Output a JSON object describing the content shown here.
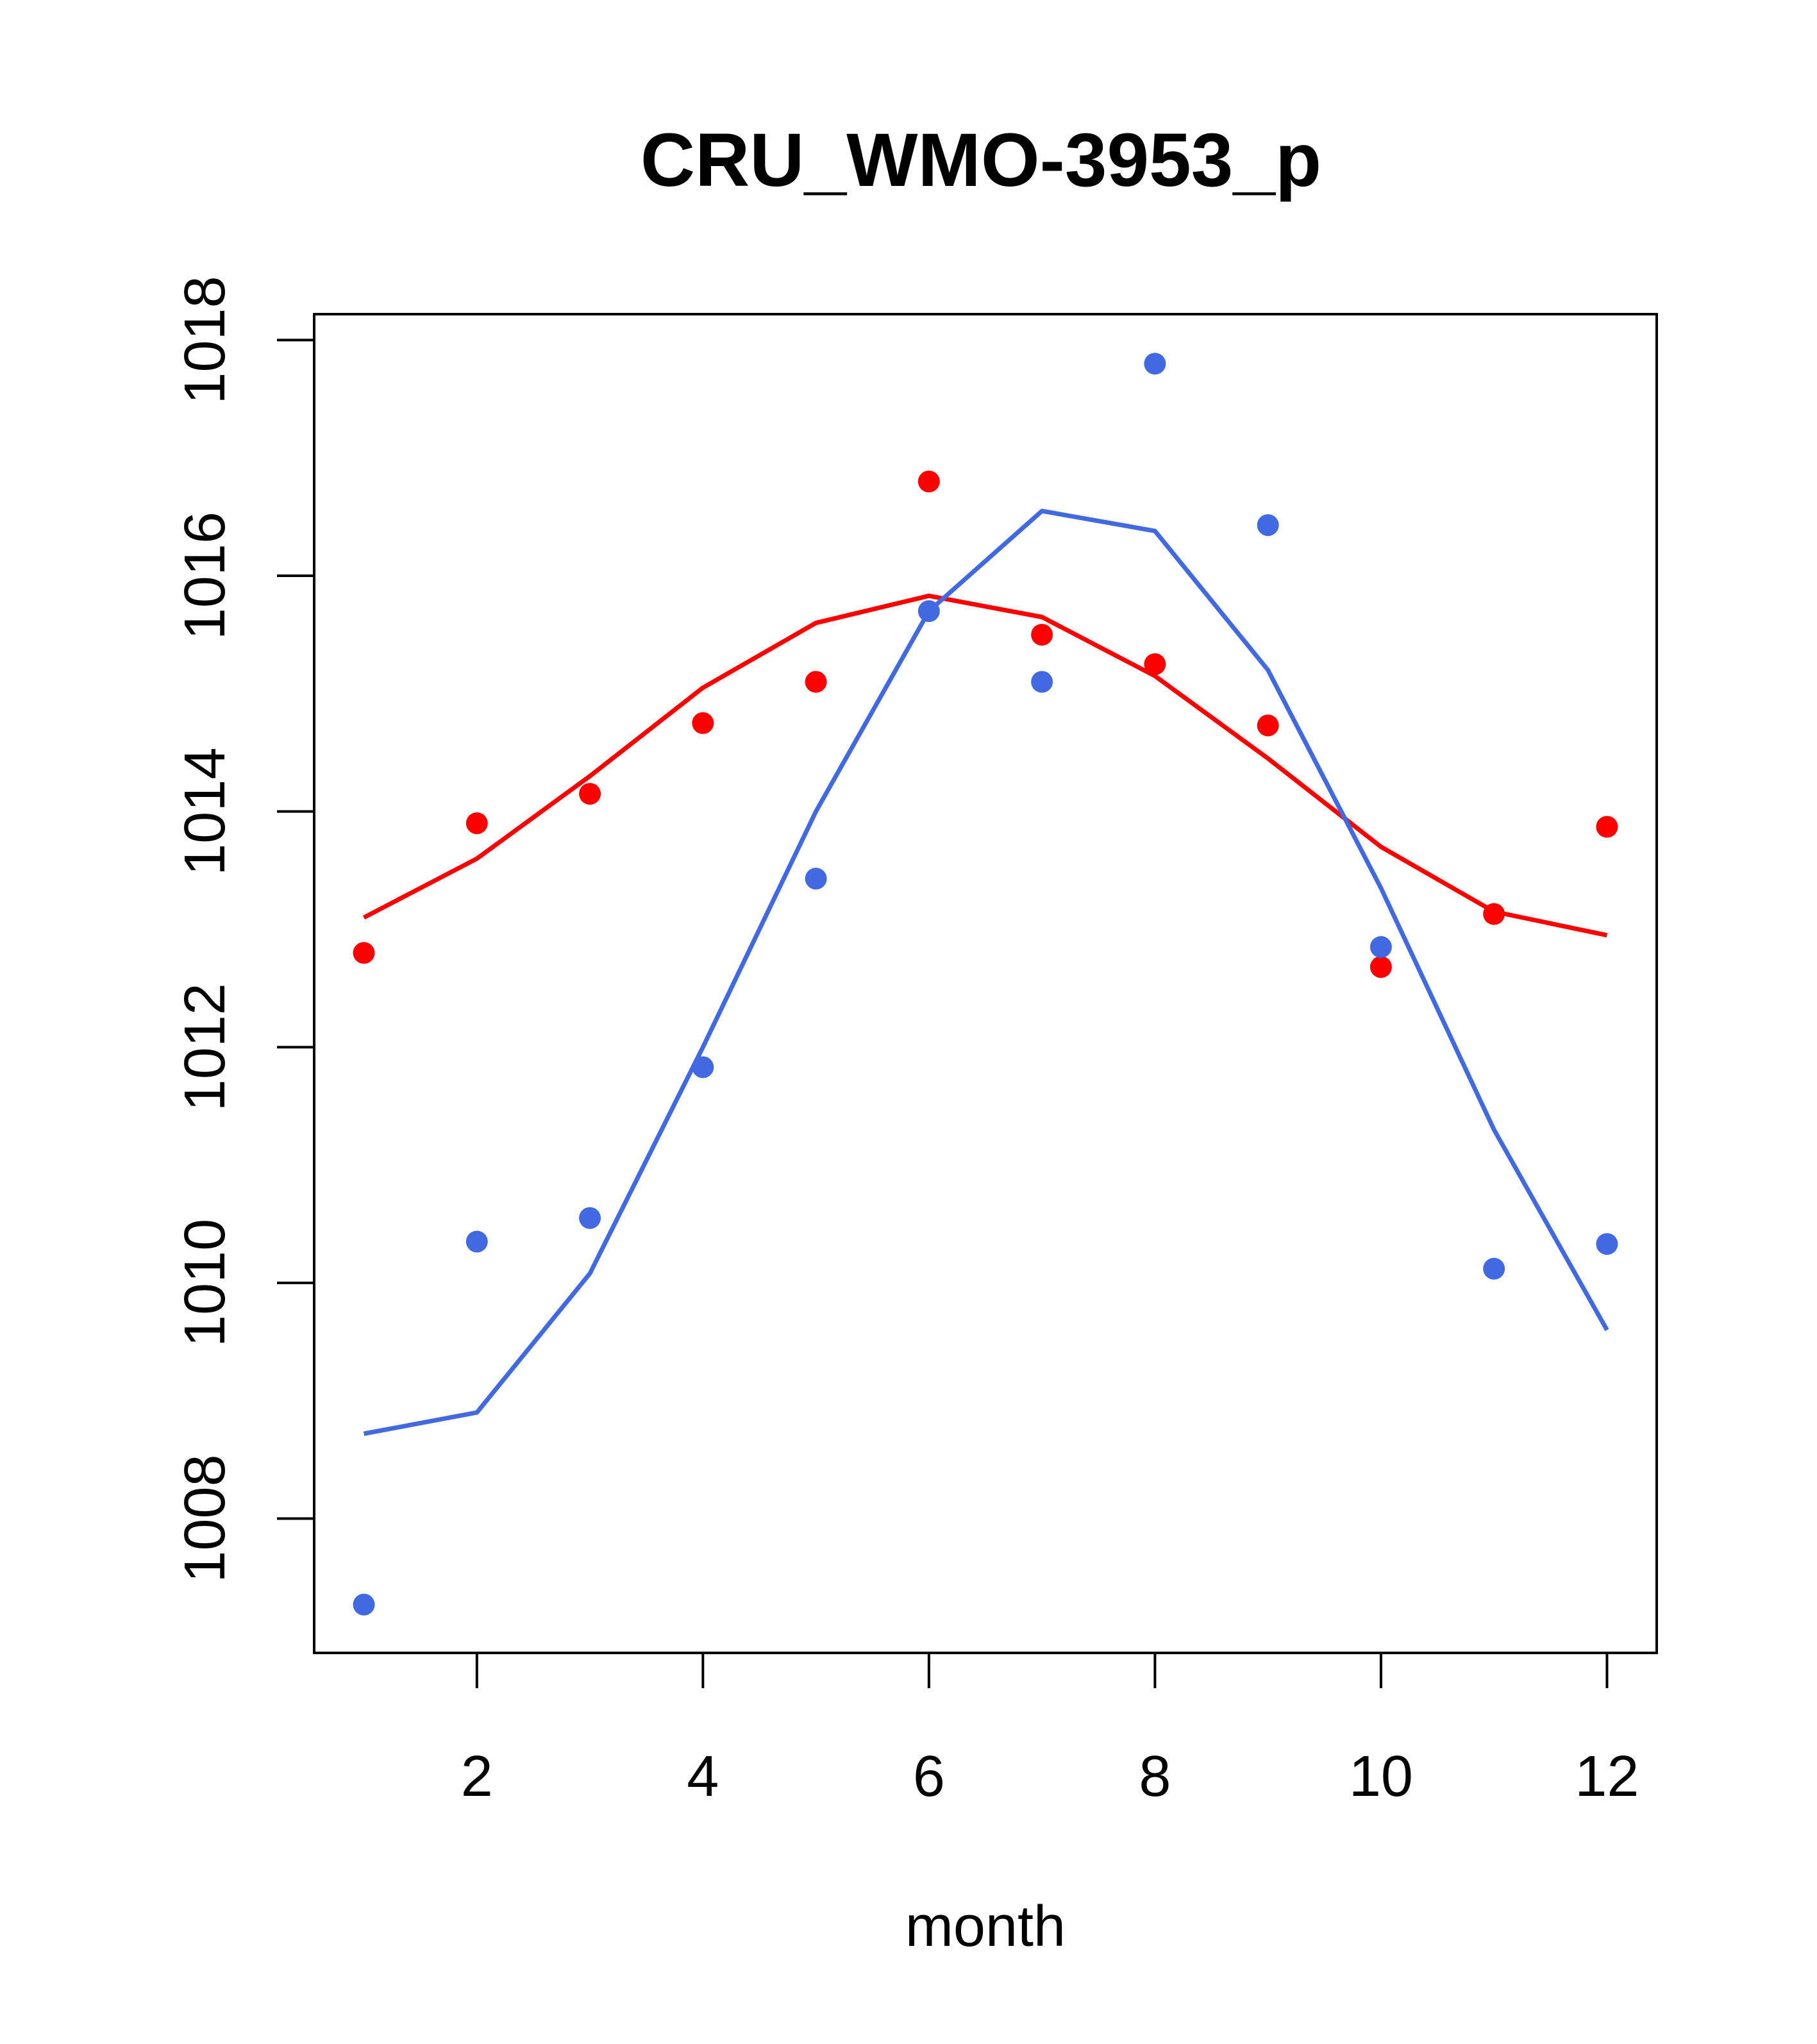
{
  "chart_data": {
    "type": "line",
    "title": "CRU_WMO-3953_p",
    "xlabel": "month",
    "ylabel": "",
    "xlim": [
      0.56,
      12.44
    ],
    "ylim": [
      1006.86,
      1018.22
    ],
    "x_ticks": [
      2,
      4,
      6,
      8,
      10,
      12
    ],
    "y_ticks": [
      1008,
      1010,
      1012,
      1014,
      1016,
      1018
    ],
    "x": [
      1,
      2,
      3,
      4,
      5,
      6,
      7,
      8,
      9,
      10,
      11,
      12
    ],
    "series": [
      {
        "name": "red points",
        "kind": "points",
        "color": "#ff0000",
        "values": [
          1012.8,
          1013.9,
          1014.15,
          1014.75,
          1015.1,
          1016.8,
          1015.5,
          1015.25,
          1014.73,
          1012.68,
          1013.13,
          1013.87
        ]
      },
      {
        "name": "red line",
        "kind": "line",
        "color": "#ff0000",
        "values": [
          1013.1,
          1013.6,
          1014.3,
          1015.05,
          1015.6,
          1015.83,
          1015.65,
          1015.15,
          1014.45,
          1013.7,
          1013.15,
          1012.95
        ]
      },
      {
        "name": "blue points",
        "kind": "points",
        "color": "#4169e1",
        "values": [
          1007.27,
          1010.35,
          1010.55,
          1011.83,
          1013.43,
          1015.7,
          1015.1,
          1017.8,
          1016.43,
          1012.85,
          1010.12,
          1010.33
        ]
      },
      {
        "name": "blue line",
        "kind": "line",
        "color": "#4169e1",
        "values": [
          1008.72,
          1008.9,
          1010.08,
          1012.0,
          1014.0,
          1015.7,
          1016.55,
          1016.38,
          1015.2,
          1013.35,
          1011.3,
          1009.6
        ]
      }
    ]
  }
}
